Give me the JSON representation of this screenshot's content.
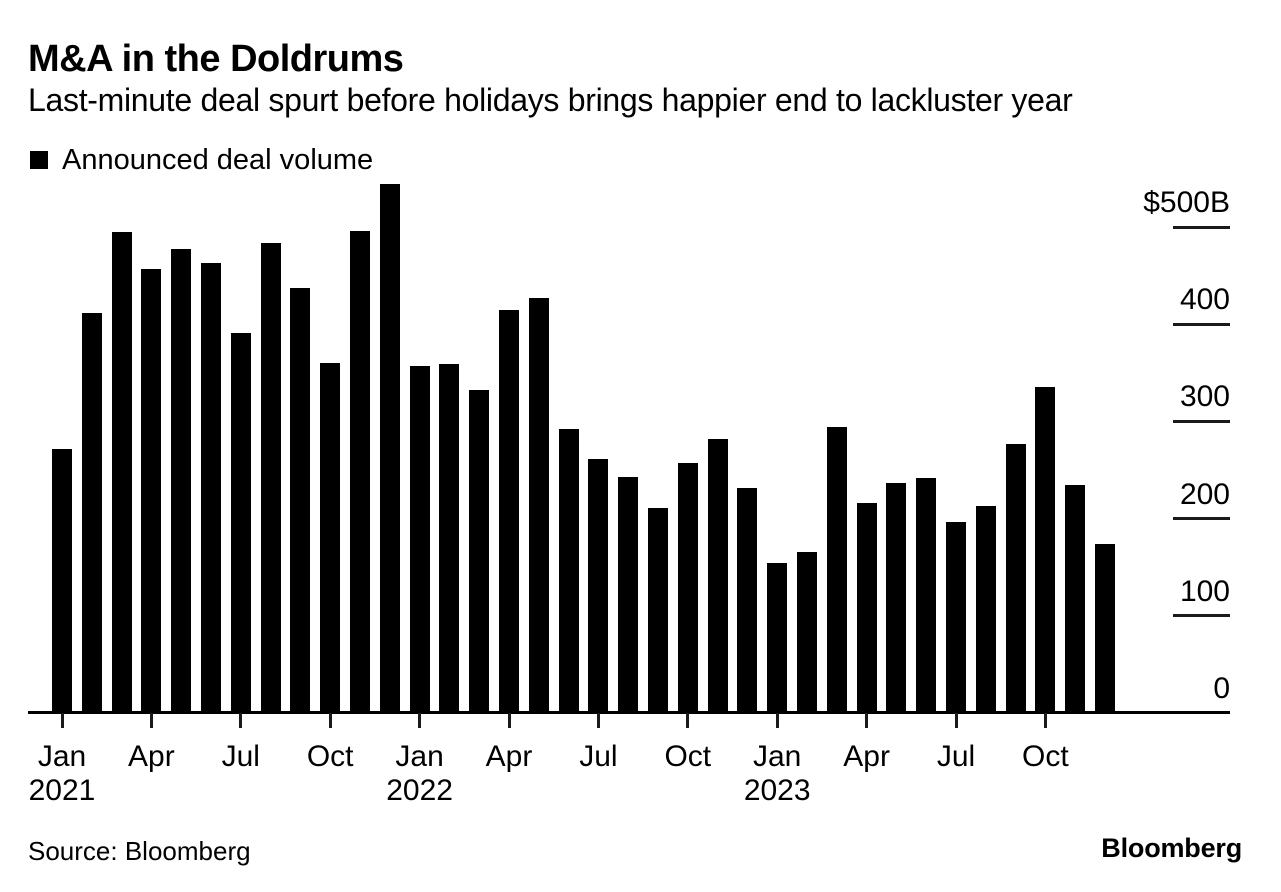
{
  "header": {
    "title": "M&A in the Doldrums",
    "subtitle": "Last-minute deal spurt before holidays brings happier end to lackluster year"
  },
  "legend": {
    "label": "Announced deal volume",
    "marker_color": "#000000"
  },
  "footer": {
    "source": "Source: Bloomberg",
    "logo": "Bloomberg"
  },
  "chart_data": {
    "type": "bar",
    "title": "M&A in the Doldrums",
    "subtitle": "Last-minute deal spurt before holidays brings happier end to lackluster year",
    "series_name": "Announced deal volume",
    "unit": "USD billions",
    "bar_color": "#000000",
    "grid": false,
    "legend_position": "top-left",
    "x": [
      "Jan 2021",
      "Feb 2021",
      "Mar 2021",
      "Apr 2021",
      "May 2021",
      "Jun 2021",
      "Jul 2021",
      "Aug 2021",
      "Sep 2021",
      "Oct 2021",
      "Nov 2021",
      "Dec 2021",
      "Jan 2022",
      "Feb 2022",
      "Mar 2022",
      "Apr 2022",
      "May 2022",
      "Jun 2022",
      "Jul 2022",
      "Aug 2022",
      "Sep 2022",
      "Oct 2022",
      "Nov 2022",
      "Dec 2022",
      "Jan 2023",
      "Feb 2023",
      "Mar 2023",
      "Apr 2023",
      "May 2023",
      "Jun 2023",
      "Jul 2023",
      "Aug 2023",
      "Sep 2023",
      "Oct 2023",
      "Nov 2023",
      "Dec 2023"
    ],
    "values": [
      272,
      412,
      495,
      457,
      477,
      463,
      391,
      484,
      437,
      360,
      496,
      544,
      357,
      359,
      332,
      415,
      427,
      292,
      261,
      243,
      211,
      257,
      282,
      231,
      154,
      166,
      294,
      216,
      237,
      242,
      196,
      213,
      277,
      335,
      235,
      174
    ],
    "ylim": [
      0,
      560
    ],
    "y_axis": {
      "side": "right",
      "tick_values": [
        0,
        100,
        200,
        300,
        400,
        500
      ],
      "tick_labels": [
        "0",
        "100",
        "200",
        "300",
        "400",
        "$500B"
      ]
    },
    "x_axis": {
      "ticks": [
        {
          "i": 0,
          "label": "Jan",
          "year": "2021"
        },
        {
          "i": 3,
          "label": "Apr"
        },
        {
          "i": 6,
          "label": "Jul"
        },
        {
          "i": 9,
          "label": "Oct"
        },
        {
          "i": 12,
          "label": "Jan",
          "year": "2022"
        },
        {
          "i": 15,
          "label": "Apr"
        },
        {
          "i": 18,
          "label": "Jul"
        },
        {
          "i": 21,
          "label": "Oct"
        },
        {
          "i": 24,
          "label": "Jan",
          "year": "2023"
        },
        {
          "i": 27,
          "label": "Apr"
        },
        {
          "i": 30,
          "label": "Jul"
        },
        {
          "i": 33,
          "label": "Oct"
        }
      ]
    }
  }
}
